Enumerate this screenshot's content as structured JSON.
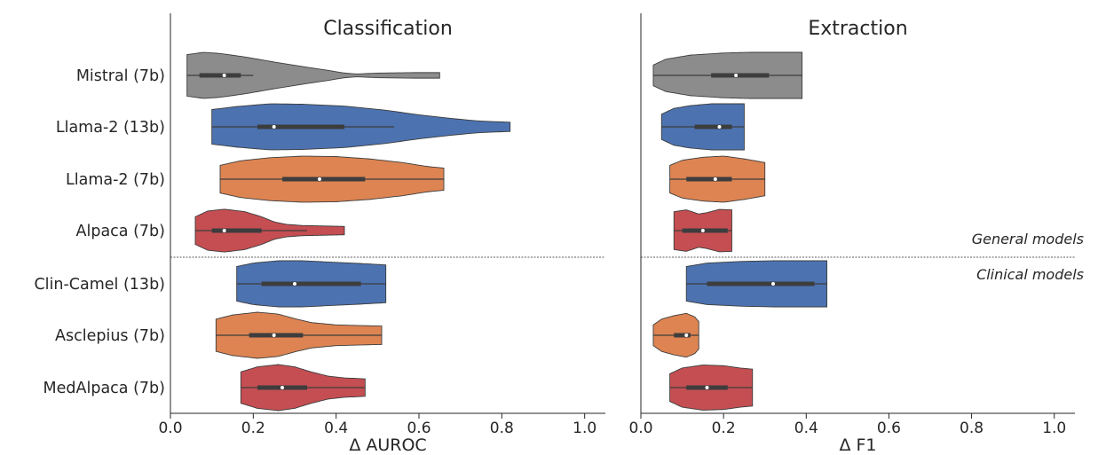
{
  "chart_data": {
    "type": "violin",
    "categories": [
      "Mistral (7b)",
      "Llama-2 (13b)",
      "Llama-2 (7b)",
      "Alpaca (7b)",
      "Clin-Camel (13b)",
      "Asclepius (7b)",
      "MedAlpaca (7b)"
    ],
    "group_labels": {
      "general": "General models",
      "clinical": "Clinical models"
    },
    "colors": {
      "Mistral (7b)": "#8c8c8c",
      "Llama-2 (13b)": "#4c72b0",
      "Llama-2 (7b)": "#dd8452",
      "Alpaca (7b)": "#c44e52",
      "Clin-Camel (13b)": "#4c72b0",
      "Asclepius (7b)": "#dd8452",
      "MedAlpaca (7b)": "#c44e52"
    },
    "panels": [
      {
        "title": "Classification",
        "xlabel": "Δ AUROC",
        "xlim": [
          0.0,
          1.05
        ],
        "xticks": [
          "0.0",
          "0.2",
          "0.4",
          "0.6",
          "0.8",
          "1.0"
        ],
        "show_category_labels": true,
        "violins": [
          {
            "model": "Mistral (7b)",
            "min": 0.04,
            "max": 0.65,
            "q1": 0.07,
            "median": 0.13,
            "q3": 0.17,
            "whisker_hi": 0.2,
            "density": [
              [
                0.04,
                0.9
              ],
              [
                0.08,
                1.0
              ],
              [
                0.12,
                0.95
              ],
              [
                0.18,
                0.8
              ],
              [
                0.25,
                0.58
              ],
              [
                0.32,
                0.38
              ],
              [
                0.38,
                0.22
              ],
              [
                0.42,
                0.1
              ],
              [
                0.45,
                0.06
              ],
              [
                0.5,
                0.1
              ],
              [
                0.58,
                0.12
              ],
              [
                0.65,
                0.12
              ]
            ]
          },
          {
            "model": "Llama-2 (13b)",
            "min": 0.1,
            "max": 0.82,
            "q1": 0.21,
            "median": 0.25,
            "q3": 0.42,
            "whisker_hi": 0.54,
            "density": [
              [
                0.1,
                0.75
              ],
              [
                0.16,
                0.88
              ],
              [
                0.24,
                1.0
              ],
              [
                0.32,
                0.98
              ],
              [
                0.42,
                0.9
              ],
              [
                0.52,
                0.72
              ],
              [
                0.6,
                0.52
              ],
              [
                0.68,
                0.36
              ],
              [
                0.74,
                0.26
              ],
              [
                0.79,
                0.22
              ],
              [
                0.82,
                0.2
              ]
            ]
          },
          {
            "model": "Llama-2 (7b)",
            "min": 0.12,
            "max": 0.66,
            "q1": 0.27,
            "median": 0.36,
            "q3": 0.47,
            "whisker_hi": 0.66,
            "density": [
              [
                0.12,
                0.6
              ],
              [
                0.17,
                0.8
              ],
              [
                0.24,
                0.93
              ],
              [
                0.32,
                1.0
              ],
              [
                0.4,
                0.98
              ],
              [
                0.48,
                0.88
              ],
              [
                0.56,
                0.72
              ],
              [
                0.62,
                0.55
              ],
              [
                0.66,
                0.48
              ]
            ]
          },
          {
            "model": "Alpaca (7b)",
            "min": 0.06,
            "max": 0.42,
            "q1": 0.1,
            "median": 0.13,
            "q3": 0.22,
            "whisker_hi": 0.33,
            "density": [
              [
                0.06,
                0.6
              ],
              [
                0.09,
                0.85
              ],
              [
                0.13,
                0.93
              ],
              [
                0.18,
                0.82
              ],
              [
                0.22,
                0.6
              ],
              [
                0.25,
                0.38
              ],
              [
                0.28,
                0.27
              ],
              [
                0.32,
                0.22
              ],
              [
                0.37,
                0.2
              ],
              [
                0.42,
                0.18
              ]
            ]
          },
          {
            "model": "Clin-Camel (13b)",
            "min": 0.16,
            "max": 0.52,
            "q1": 0.22,
            "median": 0.3,
            "q3": 0.46,
            "whisker_hi": 0.52,
            "density": [
              [
                0.16,
                0.75
              ],
              [
                0.2,
                0.9
              ],
              [
                0.26,
                1.0
              ],
              [
                0.32,
                1.0
              ],
              [
                0.4,
                0.93
              ],
              [
                0.46,
                0.88
              ],
              [
                0.52,
                0.82
              ]
            ]
          },
          {
            "model": "Asclepius (7b)",
            "min": 0.11,
            "max": 0.51,
            "q1": 0.19,
            "median": 0.25,
            "q3": 0.32,
            "whisker_hi": 0.51,
            "density": [
              [
                0.11,
                0.7
              ],
              [
                0.15,
                0.88
              ],
              [
                0.21,
                1.0
              ],
              [
                0.26,
                0.92
              ],
              [
                0.3,
                0.72
              ],
              [
                0.34,
                0.55
              ],
              [
                0.4,
                0.45
              ],
              [
                0.46,
                0.42
              ],
              [
                0.51,
                0.4
              ]
            ]
          },
          {
            "model": "MedAlpaca (7b)",
            "min": 0.17,
            "max": 0.47,
            "q1": 0.21,
            "median": 0.27,
            "q3": 0.33,
            "whisker_hi": 0.47,
            "density": [
              [
                0.17,
                0.68
              ],
              [
                0.21,
                0.9
              ],
              [
                0.26,
                1.0
              ],
              [
                0.3,
                0.9
              ],
              [
                0.34,
                0.68
              ],
              [
                0.38,
                0.5
              ],
              [
                0.42,
                0.42
              ],
              [
                0.47,
                0.38
              ]
            ]
          }
        ]
      },
      {
        "title": "Extraction",
        "xlabel": "Δ F1",
        "xlim": [
          0.0,
          1.05
        ],
        "xticks": [
          "0.0",
          "0.2",
          "0.4",
          "0.6",
          "0.8",
          "1.0"
        ],
        "show_category_labels": false,
        "violins": [
          {
            "model": "Mistral (7b)",
            "min": 0.03,
            "max": 0.39,
            "q1": 0.17,
            "median": 0.23,
            "q3": 0.31,
            "whisker_hi": 0.39,
            "density": [
              [
                0.03,
                0.45
              ],
              [
                0.06,
                0.7
              ],
              [
                0.12,
                0.88
              ],
              [
                0.2,
                0.97
              ],
              [
                0.26,
                1.0
              ],
              [
                0.32,
                1.0
              ],
              [
                0.36,
                1.0
              ],
              [
                0.39,
                1.0
              ]
            ]
          },
          {
            "model": "Llama-2 (13b)",
            "min": 0.05,
            "max": 0.25,
            "q1": 0.13,
            "median": 0.19,
            "q3": 0.22,
            "whisker_hi": 0.25,
            "density": [
              [
                0.05,
                0.55
              ],
              [
                0.08,
                0.8
              ],
              [
                0.12,
                0.92
              ],
              [
                0.17,
                1.0
              ],
              [
                0.21,
                1.0
              ],
              [
                0.25,
                1.0
              ]
            ]
          },
          {
            "model": "Llama-2 (7b)",
            "min": 0.07,
            "max": 0.3,
            "q1": 0.11,
            "median": 0.18,
            "q3": 0.22,
            "whisker_hi": 0.3,
            "density": [
              [
                0.07,
                0.6
              ],
              [
                0.1,
                0.82
              ],
              [
                0.15,
                0.95
              ],
              [
                0.2,
                1.0
              ],
              [
                0.25,
                0.88
              ],
              [
                0.3,
                0.72
              ]
            ]
          },
          {
            "model": "Alpaca (7b)",
            "min": 0.08,
            "max": 0.22,
            "q1": 0.1,
            "median": 0.15,
            "q3": 0.21,
            "whisker_hi": 0.22,
            "density": [
              [
                0.08,
                0.82
              ],
              [
                0.11,
                0.9
              ],
              [
                0.14,
                0.72
              ],
              [
                0.16,
                0.78
              ],
              [
                0.19,
                0.92
              ],
              [
                0.22,
                0.9
              ]
            ]
          },
          {
            "model": "Clin-Camel (13b)",
            "min": 0.11,
            "max": 0.45,
            "q1": 0.16,
            "median": 0.32,
            "q3": 0.42,
            "whisker_hi": 0.45,
            "density": [
              [
                0.11,
                0.75
              ],
              [
                0.16,
                0.9
              ],
              [
                0.24,
                0.97
              ],
              [
                0.32,
                1.0
              ],
              [
                0.4,
                1.0
              ],
              [
                0.45,
                1.0
              ]
            ]
          },
          {
            "model": "Asclepius (7b)",
            "min": 0.03,
            "max": 0.14,
            "q1": 0.08,
            "median": 0.11,
            "q3": 0.12,
            "whisker_hi": 0.14,
            "density": [
              [
                0.03,
                0.45
              ],
              [
                0.05,
                0.7
              ],
              [
                0.08,
                0.85
              ],
              [
                0.11,
                0.95
              ],
              [
                0.13,
                0.8
              ],
              [
                0.14,
                0.6
              ]
            ]
          },
          {
            "model": "MedAlpaca (7b)",
            "min": 0.07,
            "max": 0.27,
            "q1": 0.11,
            "median": 0.16,
            "q3": 0.21,
            "whisker_hi": 0.27,
            "density": [
              [
                0.07,
                0.6
              ],
              [
                0.1,
                0.85
              ],
              [
                0.15,
                0.98
              ],
              [
                0.2,
                0.95
              ],
              [
                0.24,
                0.85
              ],
              [
                0.27,
                0.8
              ]
            ]
          }
        ]
      }
    ]
  }
}
